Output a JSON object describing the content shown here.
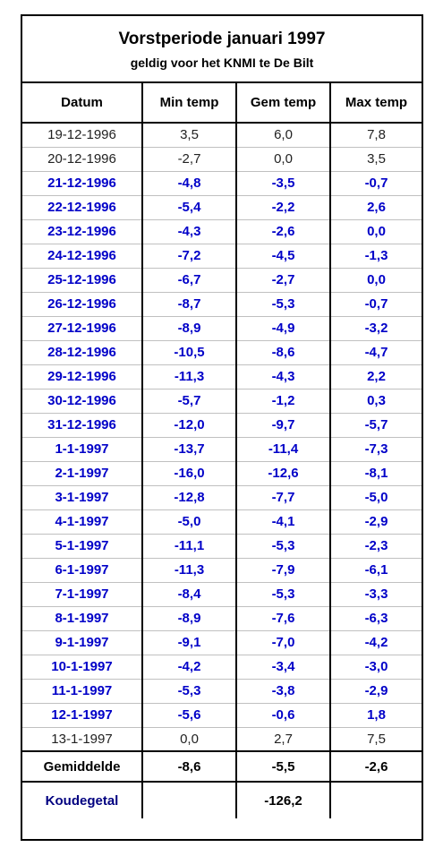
{
  "title": "Vorstperiode januari 1997",
  "subtitle": "geldig voor het KNMI te De Bilt",
  "headers": [
    "Datum",
    "Min temp",
    "Gem temp",
    "Max temp"
  ],
  "rows": [
    {
      "date": "19-12-1996",
      "min": "3,5",
      "avg": "6,0",
      "max": "7,8",
      "frost": false
    },
    {
      "date": "20-12-1996",
      "min": "-2,7",
      "avg": "0,0",
      "max": "3,5",
      "frost": false
    },
    {
      "date": "21-12-1996",
      "min": "-4,8",
      "avg": "-3,5",
      "max": "-0,7",
      "frost": true
    },
    {
      "date": "22-12-1996",
      "min": "-5,4",
      "avg": "-2,2",
      "max": "2,6",
      "frost": true
    },
    {
      "date": "23-12-1996",
      "min": "-4,3",
      "avg": "-2,6",
      "max": "0,0",
      "frost": true
    },
    {
      "date": "24-12-1996",
      "min": "-7,2",
      "avg": "-4,5",
      "max": "-1,3",
      "frost": true
    },
    {
      "date": "25-12-1996",
      "min": "-6,7",
      "avg": "-2,7",
      "max": "0,0",
      "frost": true
    },
    {
      "date": "26-12-1996",
      "min": "-8,7",
      "avg": "-5,3",
      "max": "-0,7",
      "frost": true
    },
    {
      "date": "27-12-1996",
      "min": "-8,9",
      "avg": "-4,9",
      "max": "-3,2",
      "frost": true
    },
    {
      "date": "28-12-1996",
      "min": "-10,5",
      "avg": "-8,6",
      "max": "-4,7",
      "frost": true
    },
    {
      "date": "29-12-1996",
      "min": "-11,3",
      "avg": "-4,3",
      "max": "2,2",
      "frost": true
    },
    {
      "date": "30-12-1996",
      "min": "-5,7",
      "avg": "-1,2",
      "max": "0,3",
      "frost": true
    },
    {
      "date": "31-12-1996",
      "min": "-12,0",
      "avg": "-9,7",
      "max": "-5,7",
      "frost": true
    },
    {
      "date": "1-1-1997",
      "min": "-13,7",
      "avg": "-11,4",
      "max": "-7,3",
      "frost": true
    },
    {
      "date": "2-1-1997",
      "min": "-16,0",
      "avg": "-12,6",
      "max": "-8,1",
      "frost": true
    },
    {
      "date": "3-1-1997",
      "min": "-12,8",
      "avg": "-7,7",
      "max": "-5,0",
      "frost": true
    },
    {
      "date": "4-1-1997",
      "min": "-5,0",
      "avg": "-4,1",
      "max": "-2,9",
      "frost": true
    },
    {
      "date": "5-1-1997",
      "min": "-11,1",
      "avg": "-5,3",
      "max": "-2,3",
      "frost": true
    },
    {
      "date": "6-1-1997",
      "min": "-11,3",
      "avg": "-7,9",
      "max": "-6,1",
      "frost": true
    },
    {
      "date": "7-1-1997",
      "min": "-8,4",
      "avg": "-5,3",
      "max": "-3,3",
      "frost": true
    },
    {
      "date": "8-1-1997",
      "min": "-8,9",
      "avg": "-7,6",
      "max": "-6,3",
      "frost": true
    },
    {
      "date": "9-1-1997",
      "min": "-9,1",
      "avg": "-7,0",
      "max": "-4,2",
      "frost": true
    },
    {
      "date": "10-1-1997",
      "min": "-4,2",
      "avg": "-3,4",
      "max": "-3,0",
      "frost": true
    },
    {
      "date": "11-1-1997",
      "min": "-5,3",
      "avg": "-3,8",
      "max": "-2,9",
      "frost": true
    },
    {
      "date": "12-1-1997",
      "min": "-5,6",
      "avg": "-0,6",
      "max": "1,8",
      "frost": true
    },
    {
      "date": "13-1-1997",
      "min": "0,0",
      "avg": "2,7",
      "max": "7,5",
      "frost": false
    }
  ],
  "average": {
    "label": "Gemiddelde",
    "min": "-8,6",
    "avg": "-5,5",
    "max": "-2,6"
  },
  "cold_number": {
    "label": "Koudegetal",
    "value": "-126,2"
  },
  "colors": {
    "frost_text": "#0000c8",
    "normal_text": "#222222",
    "cold_label": "#000080"
  }
}
